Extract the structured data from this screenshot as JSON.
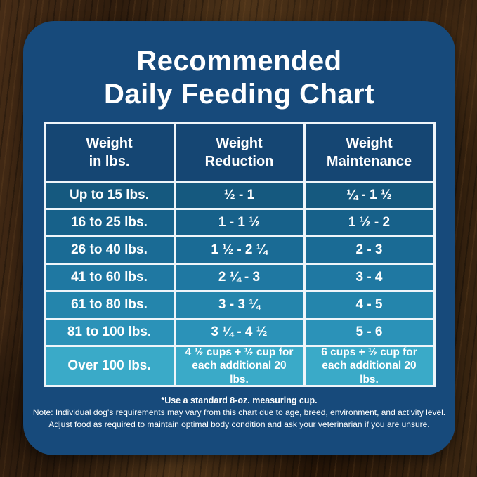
{
  "title": {
    "line1": "Recommended",
    "line2": "Daily Feeding Chart"
  },
  "table": {
    "columns": [
      {
        "line1": "Weight",
        "line2": "in lbs."
      },
      {
        "line1": "Weight",
        "line2": "Reduction"
      },
      {
        "line1": "Weight",
        "line2": "Maintenance"
      }
    ],
    "rows": [
      {
        "weight": "Up to 15 lbs.",
        "reduction": "½ - 1",
        "maintenance": "¼ - 1 ½"
      },
      {
        "weight": "16 to 25 lbs.",
        "reduction": "1 - 1 ½",
        "maintenance": "1 ½ - 2"
      },
      {
        "weight": "26 to 40 lbs.",
        "reduction": "1 ½ - 2 ¼",
        "maintenance": "2 - 3"
      },
      {
        "weight": "41 to 60 lbs.",
        "reduction": "2 ¼ - 3",
        "maintenance": "3 - 4"
      },
      {
        "weight": "61 to 80 lbs.",
        "reduction": "3 - 3 ¼",
        "maintenance": "4 - 5"
      },
      {
        "weight": "81 to 100 lbs.",
        "reduction": "3 ¼ - 4 ½",
        "maintenance": "5 - 6"
      },
      {
        "weight": "Over 100 lbs.",
        "reduction": "4 ½ cups + ½ cup for each additional 20 lbs.",
        "maintenance": "6 cups + ½ cup for each additional 20 lbs."
      }
    ],
    "row_colors": [
      "#15597f",
      "#17618a",
      "#1a6b95",
      "#1f78a2",
      "#2485ac",
      "#2b92b8",
      "#3aaac8"
    ]
  },
  "footnotes": {
    "measuring_cup": "*Use a standard 8-oz. measuring cup.",
    "note": "Note: Individual dog's requirements may vary from this chart due to age, breed, environment, and activity level.",
    "adjust": "Adjust food as required to maintain optimal body condition and ask your veterinarian if you are unsure."
  },
  "colors": {
    "card_bg": "#174a7b",
    "header_bg": "#154673",
    "grid_line": "#eef5fa",
    "text": "#ffffff",
    "wood_dark": "#2a180b",
    "wood_light": "#5b3d20"
  },
  "chart_data": {
    "type": "table",
    "title": "Recommended Daily Feeding Chart",
    "columns": [
      "Weight in lbs.",
      "Weight Reduction",
      "Weight Maintenance"
    ],
    "rows": [
      [
        "Up to 15 lbs.",
        "½ - 1",
        "¼ - 1 ½"
      ],
      [
        "16 to 25 lbs.",
        "1 - 1 ½",
        "1 ½ - 2"
      ],
      [
        "26 to 40 lbs.",
        "1 ½ - 2 ¼",
        "2 - 3"
      ],
      [
        "41 to 60 lbs.",
        "2 ¼ - 3",
        "3 - 4"
      ],
      [
        "61 to 80 lbs.",
        "3 - 3 ¼",
        "4 - 5"
      ],
      [
        "81 to 100 lbs.",
        "3 ¼ - 4 ½",
        "5 - 6"
      ],
      [
        "Over 100 lbs.",
        "4 ½ cups + ½ cup for each additional 20 lbs.",
        "6 cups + ½ cup for each additional 20 lbs."
      ]
    ],
    "footnote": "*Use a standard 8-oz. measuring cup."
  }
}
